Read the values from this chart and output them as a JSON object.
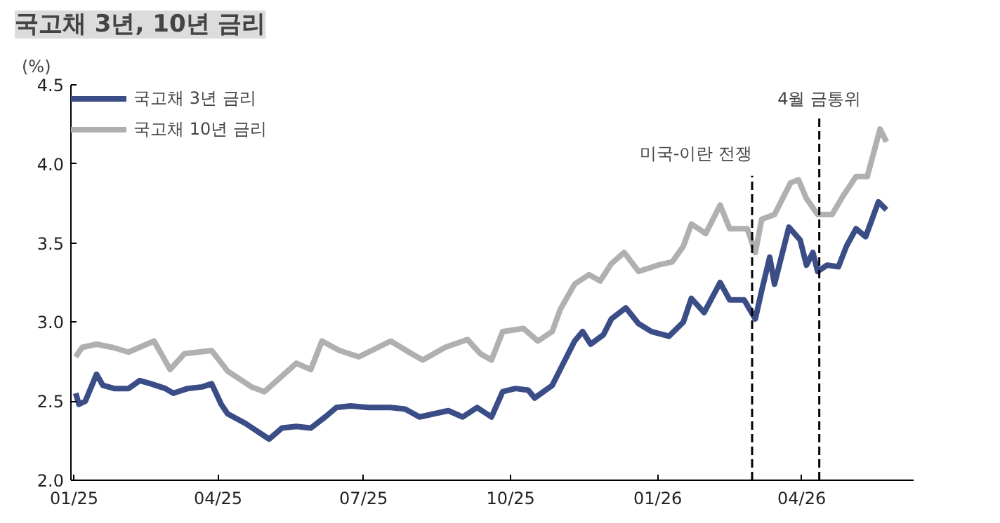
{
  "chart_data": {
    "type": "line",
    "title": "국고채 3년, 10년 금리",
    "ylabel": "(%)",
    "xlim": [
      "2024-12-30",
      "2026-06-10"
    ],
    "xticks": [
      {
        "value": "2025-01-01",
        "label": "01/25"
      },
      {
        "value": "2025-04-01",
        "label": "04/25"
      },
      {
        "value": "2025-07-01",
        "label": "07/25"
      },
      {
        "value": "2025-10-01",
        "label": "10/25"
      },
      {
        "value": "2026-01-01",
        "label": "01/26"
      },
      {
        "value": "2026-04-01",
        "label": "04/26"
      }
    ],
    "ylim": [
      2.0,
      4.5
    ],
    "yticks": [
      {
        "value": 2.0,
        "label": "2.0"
      },
      {
        "value": 2.5,
        "label": "2.5"
      },
      {
        "value": 3.0,
        "label": "3.0"
      },
      {
        "value": 3.5,
        "label": "3.5"
      },
      {
        "value": 4.0,
        "label": "4.0"
      },
      {
        "value": 4.5,
        "label": "4.5"
      }
    ],
    "grid": false,
    "legend": "top left",
    "marker": "none",
    "line_style": "solid",
    "series": [
      {
        "name": "국고채 3년 금리",
        "color": "#3b4d86",
        "x": [
          "2025-01-02",
          "2025-01-04",
          "2025-01-08",
          "2025-01-15",
          "2025-01-19",
          "2025-01-26",
          "2025-02-04",
          "2025-02-11",
          "2025-02-18",
          "2025-02-27",
          "2025-03-04",
          "2025-03-13",
          "2025-03-22",
          "2025-03-28",
          "2025-04-03",
          "2025-04-07",
          "2025-04-18",
          "2025-04-27",
          "2025-05-03",
          "2025-05-11",
          "2025-05-20",
          "2025-05-29",
          "2025-06-07",
          "2025-06-14",
          "2025-06-23",
          "2025-07-04",
          "2025-07-18",
          "2025-07-27",
          "2025-08-05",
          "2025-08-14",
          "2025-08-23",
          "2025-09-01",
          "2025-09-10",
          "2025-09-19",
          "2025-09-26",
          "2025-10-04",
          "2025-10-12",
          "2025-10-16",
          "2025-10-27",
          "2025-11-03",
          "2025-11-10",
          "2025-11-15",
          "2025-11-20",
          "2025-11-28",
          "2025-12-03",
          "2025-12-12",
          "2025-12-20",
          "2025-12-28",
          "2026-01-08",
          "2026-01-17",
          "2026-01-22",
          "2026-01-30",
          "2026-02-09",
          "2026-02-15",
          "2026-02-24",
          "2026-03-03",
          "2026-03-07",
          "2026-03-12",
          "2026-03-15",
          "2026-03-24",
          "2026-03-31",
          "2026-04-04",
          "2026-04-08",
          "2026-04-11",
          "2026-04-17",
          "2026-04-24",
          "2026-04-29",
          "2026-05-05",
          "2026-05-11",
          "2026-05-19",
          "2026-05-24"
        ],
        "values": [
          2.55,
          2.48,
          2.5,
          2.67,
          2.6,
          2.58,
          2.58,
          2.63,
          2.61,
          2.58,
          2.55,
          2.58,
          2.59,
          2.61,
          2.48,
          2.42,
          2.36,
          2.3,
          2.26,
          2.33,
          2.34,
          2.33,
          2.4,
          2.46,
          2.47,
          2.46,
          2.46,
          2.45,
          2.4,
          2.42,
          2.44,
          2.4,
          2.46,
          2.4,
          2.56,
          2.58,
          2.57,
          2.52,
          2.6,
          2.74,
          2.88,
          2.94,
          2.86,
          2.92,
          3.02,
          3.09,
          2.99,
          2.94,
          2.91,
          3.0,
          3.15,
          3.06,
          3.25,
          3.14,
          3.14,
          3.02,
          3.2,
          3.41,
          3.24,
          3.6,
          3.52,
          3.36,
          3.44,
          3.32,
          3.36,
          3.35,
          3.48,
          3.59,
          3.54,
          3.76,
          3.71
        ]
      },
      {
        "name": "국고채 10년 금리",
        "color": "#b0b0b0",
        "x": [
          "2025-01-02",
          "2025-01-06",
          "2025-01-15",
          "2025-01-25",
          "2025-02-04",
          "2025-02-20",
          "2025-03-02",
          "2025-03-11",
          "2025-03-28",
          "2025-04-07",
          "2025-04-22",
          "2025-04-30",
          "2025-05-09",
          "2025-05-20",
          "2025-05-29",
          "2025-06-05",
          "2025-06-16",
          "2025-06-28",
          "2025-07-18",
          "2025-07-31",
          "2025-08-07",
          "2025-08-21",
          "2025-09-04",
          "2025-09-12",
          "2025-09-19",
          "2025-09-26",
          "2025-10-09",
          "2025-10-18",
          "2025-10-27",
          "2025-11-01",
          "2025-11-10",
          "2025-11-19",
          "2025-11-26",
          "2025-12-03",
          "2025-12-11",
          "2025-12-20",
          "2026-01-01",
          "2026-01-10",
          "2026-01-17",
          "2026-01-22",
          "2026-01-31",
          "2026-02-09",
          "2026-02-15",
          "2026-02-26",
          "2026-03-03",
          "2026-03-07",
          "2026-03-15",
          "2026-03-25",
          "2026-03-30",
          "2026-04-04",
          "2026-04-11",
          "2026-04-20",
          "2026-04-27",
          "2026-05-05",
          "2026-05-12",
          "2026-05-20",
          "2026-05-24"
        ],
        "values": [
          2.78,
          2.84,
          2.86,
          2.84,
          2.81,
          2.88,
          2.7,
          2.8,
          2.82,
          2.69,
          2.59,
          2.56,
          2.64,
          2.74,
          2.7,
          2.88,
          2.82,
          2.78,
          2.88,
          2.8,
          2.76,
          2.84,
          2.89,
          2.8,
          2.76,
          2.94,
          2.96,
          2.88,
          2.94,
          3.08,
          3.24,
          3.3,
          3.26,
          3.37,
          3.44,
          3.32,
          3.36,
          3.38,
          3.48,
          3.62,
          3.56,
          3.74,
          3.59,
          3.59,
          3.44,
          3.65,
          3.68,
          3.88,
          3.9,
          3.78,
          3.68,
          3.68,
          3.8,
          3.92,
          3.92,
          4.22,
          4.14
        ]
      }
    ],
    "ref_lines": [
      {
        "axis": "x",
        "value": "2026-03-01",
        "label": "미국-이란 전쟁",
        "color": "#000000",
        "line_style": "dashed"
      },
      {
        "axis": "x",
        "value": "2026-04-12",
        "label": "4월 금통위",
        "color": "#000000",
        "line_style": "dashed"
      }
    ]
  }
}
